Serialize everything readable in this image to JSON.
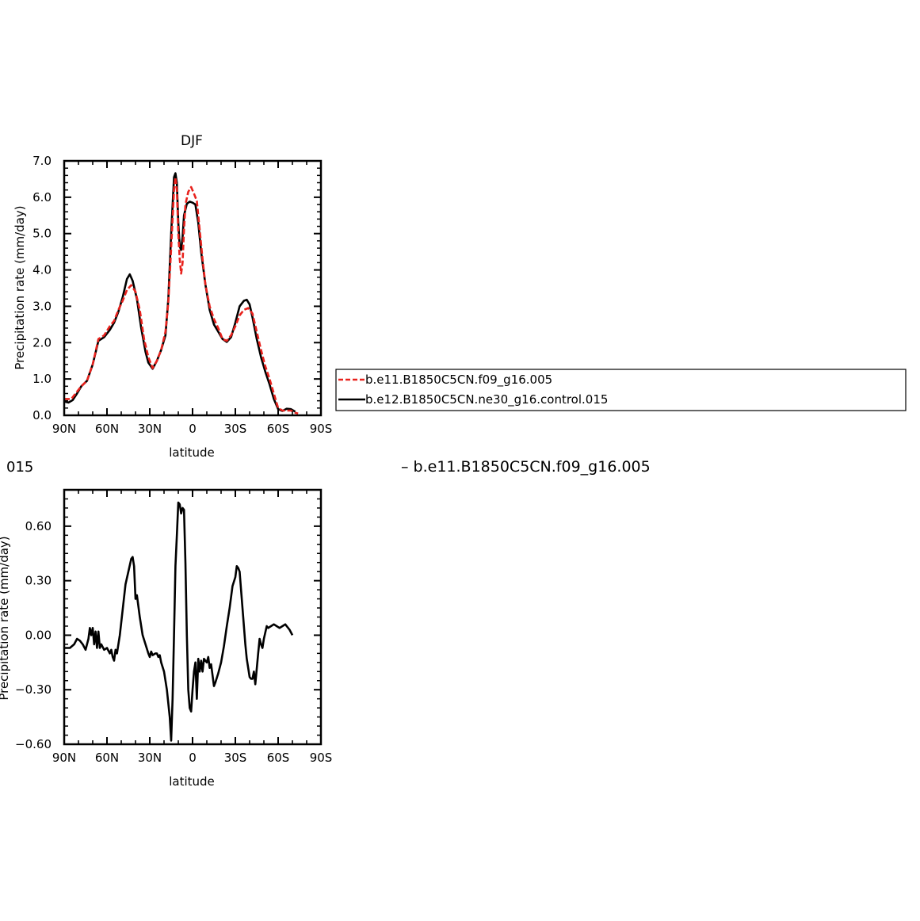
{
  "chart_data": [
    {
      "type": "line",
      "title": "DJF",
      "xlabel": "latitude",
      "ylabel": "Precipitation rate (mm/day)",
      "xlim": [
        90,
        -90
      ],
      "ylim": [
        0,
        7
      ],
      "xticks": [
        {
          "value": 90,
          "label": "90N"
        },
        {
          "value": 60,
          "label": "60N"
        },
        {
          "value": 30,
          "label": "30N"
        },
        {
          "value": 0,
          "label": "0"
        },
        {
          "value": -30,
          "label": "30S"
        },
        {
          "value": -60,
          "label": "60S"
        },
        {
          "value": -90,
          "label": "90S"
        }
      ],
      "yticks": [
        {
          "value": 0,
          "label": "0.0"
        },
        {
          "value": 1,
          "label": "1.0"
        },
        {
          "value": 2,
          "label": "2.0"
        },
        {
          "value": 3,
          "label": "3.0"
        },
        {
          "value": 4,
          "label": "4.0"
        },
        {
          "value": 5,
          "label": "5.0"
        },
        {
          "value": 6,
          "label": "6.0"
        },
        {
          "value": 7,
          "label": "7.0"
        }
      ],
      "grid": false,
      "legend_position": "right, outside plot",
      "series": [
        {
          "name": "b.e11.B1850C5CN.f09_g16.005",
          "color": "#e8221d",
          "dash": "dashed",
          "points": [
            [
              90,
              0.45
            ],
            [
              85,
              0.45
            ],
            [
              82,
              0.6
            ],
            [
              78,
              0.8
            ],
            [
              74,
              0.95
            ],
            [
              70,
              1.4
            ],
            [
              66,
              2.1
            ],
            [
              62,
              2.2
            ],
            [
              58,
              2.45
            ],
            [
              55,
              2.6
            ],
            [
              52,
              2.9
            ],
            [
              49,
              3.15
            ],
            [
              46,
              3.45
            ],
            [
              43,
              3.58
            ],
            [
              40,
              3.4
            ],
            [
              37,
              2.9
            ],
            [
              34,
              2.1
            ],
            [
              31,
              1.6
            ],
            [
              28,
              1.3
            ],
            [
              25,
              1.5
            ],
            [
              22,
              1.8
            ],
            [
              19,
              2.3
            ],
            [
              17,
              3.1
            ],
            [
              15,
              4.6
            ],
            [
              13,
              6.2
            ],
            [
              12,
              6.55
            ],
            [
              11,
              6.2
            ],
            [
              10,
              5.0
            ],
            [
              9,
              4.3
            ],
            [
              8,
              3.9
            ],
            [
              7,
              4.2
            ],
            [
              6,
              5.1
            ],
            [
              5,
              5.8
            ],
            [
              3,
              6.15
            ],
            [
              1,
              6.28
            ],
            [
              -1,
              6.1
            ],
            [
              -3,
              5.9
            ],
            [
              -5,
              5.1
            ],
            [
              -7,
              4.3
            ],
            [
              -9,
              3.6
            ],
            [
              -12,
              3.0
            ],
            [
              -15,
              2.65
            ],
            [
              -18,
              2.4
            ],
            [
              -21,
              2.1
            ],
            [
              -24,
              2.05
            ],
            [
              -27,
              2.2
            ],
            [
              -30,
              2.45
            ],
            [
              -33,
              2.75
            ],
            [
              -36,
              2.9
            ],
            [
              -39,
              2.95
            ],
            [
              -42,
              2.8
            ],
            [
              -45,
              2.3
            ],
            [
              -48,
              1.8
            ],
            [
              -51,
              1.35
            ],
            [
              -54,
              1.0
            ],
            [
              -57,
              0.6
            ],
            [
              -60,
              0.2
            ],
            [
              -63,
              0.13
            ],
            [
              -66,
              0.13
            ],
            [
              -69,
              0.13
            ],
            [
              -72,
              0.07
            ],
            [
              -74,
              0.05
            ]
          ]
        },
        {
          "name": "b.e12.B1850C5CN.ne30_g16.control.015",
          "color": "#000000",
          "dash": "solid",
          "points": [
            [
              90,
              0.38
            ],
            [
              87,
              0.35
            ],
            [
              84,
              0.42
            ],
            [
              81,
              0.6
            ],
            [
              78,
              0.8
            ],
            [
              74,
              0.95
            ],
            [
              70,
              1.4
            ],
            [
              66,
              2.05
            ],
            [
              62,
              2.15
            ],
            [
              58,
              2.35
            ],
            [
              55,
              2.55
            ],
            [
              52,
              2.85
            ],
            [
              49,
              3.25
            ],
            [
              46,
              3.75
            ],
            [
              44,
              3.88
            ],
            [
              42,
              3.7
            ],
            [
              39,
              3.2
            ],
            [
              36,
              2.4
            ],
            [
              33,
              1.75
            ],
            [
              31,
              1.45
            ],
            [
              28,
              1.28
            ],
            [
              25,
              1.5
            ],
            [
              22,
              1.8
            ],
            [
              19,
              2.2
            ],
            [
              17,
              3.2
            ],
            [
              15,
              5.0
            ],
            [
              13,
              6.55
            ],
            [
              12,
              6.66
            ],
            [
              11,
              6.4
            ],
            [
              10,
              5.3
            ],
            [
              9,
              4.65
            ],
            [
              8,
              4.55
            ],
            [
              7,
              4.9
            ],
            [
              6,
              5.5
            ],
            [
              4,
              5.82
            ],
            [
              2,
              5.88
            ],
            [
              0,
              5.85
            ],
            [
              -2,
              5.8
            ],
            [
              -4,
              5.3
            ],
            [
              -6,
              4.5
            ],
            [
              -9,
              3.6
            ],
            [
              -12,
              2.9
            ],
            [
              -15,
              2.5
            ],
            [
              -18,
              2.3
            ],
            [
              -21,
              2.1
            ],
            [
              -24,
              2.02
            ],
            [
              -27,
              2.15
            ],
            [
              -30,
              2.55
            ],
            [
              -33,
              3.0
            ],
            [
              -36,
              3.15
            ],
            [
              -38,
              3.18
            ],
            [
              -40,
              3.05
            ],
            [
              -42,
              2.7
            ],
            [
              -45,
              2.1
            ],
            [
              -48,
              1.6
            ],
            [
              -51,
              1.2
            ],
            [
              -54,
              0.85
            ],
            [
              -57,
              0.45
            ],
            [
              -60,
              0.17
            ],
            [
              -63,
              0.12
            ],
            [
              -66,
              0.18
            ],
            [
              -69,
              0.17
            ],
            [
              -72,
              0.1
            ]
          ]
        }
      ]
    },
    {
      "type": "line",
      "title": "",
      "xlabel": "latitude",
      "ylabel": "",
      "xlim": [
        90,
        -90
      ],
      "ylim": [
        -0.6,
        0.8
      ],
      "xticks": [
        {
          "value": 90,
          "label": "90N"
        },
        {
          "value": 60,
          "label": "60N"
        },
        {
          "value": 30,
          "label": "30N"
        },
        {
          "value": 0,
          "label": "0"
        },
        {
          "value": -30,
          "label": "30S"
        },
        {
          "value": -60,
          "label": "60S"
        },
        {
          "value": -90,
          "label": "90S"
        }
      ],
      "yticks": [
        {
          "value": -0.6,
          "label": "−0.60"
        },
        {
          "value": -0.3,
          "label": "−0.30"
        },
        {
          "value": 0.0,
          "label": "0.00"
        },
        {
          "value": 0.3,
          "label": "0.30"
        },
        {
          "value": 0.6,
          "label": "0.60"
        }
      ],
      "grid": false,
      "series": [
        {
          "name": "",
          "color": "#000000",
          "dash": "solid",
          "points": [
            [
              90,
              -0.07
            ],
            [
              86,
              -0.07
            ],
            [
              83,
              -0.05
            ],
            [
              81,
              -0.02
            ],
            [
              79,
              -0.03
            ],
            [
              77,
              -0.05
            ],
            [
              75,
              -0.08
            ],
            [
              73,
              -0.02
            ],
            [
              72,
              0.04
            ],
            [
              71,
              0.0
            ],
            [
              70,
              0.04
            ],
            [
              69,
              -0.05
            ],
            [
              68,
              0.02
            ],
            [
              67,
              -0.07
            ],
            [
              66,
              0.02
            ],
            [
              65,
              -0.07
            ],
            [
              64,
              -0.05
            ],
            [
              62,
              -0.08
            ],
            [
              60,
              -0.07
            ],
            [
              58,
              -0.1
            ],
            [
              57,
              -0.08
            ],
            [
              56,
              -0.12
            ],
            [
              55,
              -0.14
            ],
            [
              54,
              -0.08
            ],
            [
              53,
              -0.1
            ],
            [
              51,
              0.0
            ],
            [
              49,
              0.14
            ],
            [
              47,
              0.28
            ],
            [
              45,
              0.35
            ],
            [
              43,
              0.42
            ],
            [
              42,
              0.43
            ],
            [
              41,
              0.38
            ],
            [
              40,
              0.2
            ],
            [
              39,
              0.22
            ],
            [
              37,
              0.1
            ],
            [
              35,
              0.0
            ],
            [
              33,
              -0.05
            ],
            [
              31,
              -0.1
            ],
            [
              30,
              -0.12
            ],
            [
              29,
              -0.09
            ],
            [
              28,
              -0.11
            ],
            [
              26,
              -0.1
            ],
            [
              25,
              -0.1
            ],
            [
              24,
              -0.12
            ],
            [
              23,
              -0.11
            ],
            [
              22,
              -0.15
            ],
            [
              20,
              -0.2
            ],
            [
              18,
              -0.3
            ],
            [
              16,
              -0.45
            ],
            [
              15,
              -0.58
            ],
            [
              14,
              -0.35
            ],
            [
              13,
              0.0
            ],
            [
              12,
              0.38
            ],
            [
              11,
              0.55
            ],
            [
              10,
              0.73
            ],
            [
              9,
              0.72
            ],
            [
              8,
              0.67
            ],
            [
              7,
              0.7
            ],
            [
              6,
              0.69
            ],
            [
              5,
              0.4
            ],
            [
              4,
              0.0
            ],
            [
              3,
              -0.3
            ],
            [
              2,
              -0.4
            ],
            [
              1,
              -0.42
            ],
            [
              0,
              -0.3
            ],
            [
              -1,
              -0.2
            ],
            [
              -2,
              -0.15
            ],
            [
              -3,
              -0.35
            ],
            [
              -4,
              -0.13
            ],
            [
              -5,
              -0.2
            ],
            [
              -6,
              -0.14
            ],
            [
              -7,
              -0.2
            ],
            [
              -8,
              -0.13
            ],
            [
              -10,
              -0.15
            ],
            [
              -11,
              -0.12
            ],
            [
              -12,
              -0.18
            ],
            [
              -13,
              -0.16
            ],
            [
              -15,
              -0.28
            ],
            [
              -16,
              -0.26
            ],
            [
              -18,
              -0.21
            ],
            [
              -20,
              -0.15
            ],
            [
              -22,
              -0.06
            ],
            [
              -24,
              0.05
            ],
            [
              -26,
              0.15
            ],
            [
              -28,
              0.27
            ],
            [
              -30,
              0.32
            ],
            [
              -31,
              0.38
            ],
            [
              -32,
              0.37
            ],
            [
              -33,
              0.35
            ],
            [
              -34,
              0.25
            ],
            [
              -35,
              0.15
            ],
            [
              -36,
              0.05
            ],
            [
              -37,
              -0.05
            ],
            [
              -38,
              -0.13
            ],
            [
              -39,
              -0.18
            ],
            [
              -40,
              -0.23
            ],
            [
              -41,
              -0.24
            ],
            [
              -42,
              -0.24
            ],
            [
              -43,
              -0.2
            ],
            [
              -44,
              -0.27
            ],
            [
              -46,
              -0.1
            ],
            [
              -47,
              -0.02
            ],
            [
              -48,
              -0.05
            ],
            [
              -49,
              -0.07
            ],
            [
              -50,
              -0.02
            ],
            [
              -52,
              0.05
            ],
            [
              -53,
              0.04
            ],
            [
              -55,
              0.05
            ],
            [
              -57,
              0.06
            ],
            [
              -59,
              0.05
            ],
            [
              -61,
              0.04
            ],
            [
              -63,
              0.05
            ],
            [
              -65,
              0.06
            ],
            [
              -68,
              0.03
            ],
            [
              -70,
              0.0
            ]
          ]
        }
      ]
    }
  ],
  "fragments": {
    "left_cut_label": "015",
    "right_cut_label": "– b.e11.B1850C5CN.f09_g16.005",
    "bottom_ylabel_fragment": "Precipitation rate (mm/day)"
  }
}
